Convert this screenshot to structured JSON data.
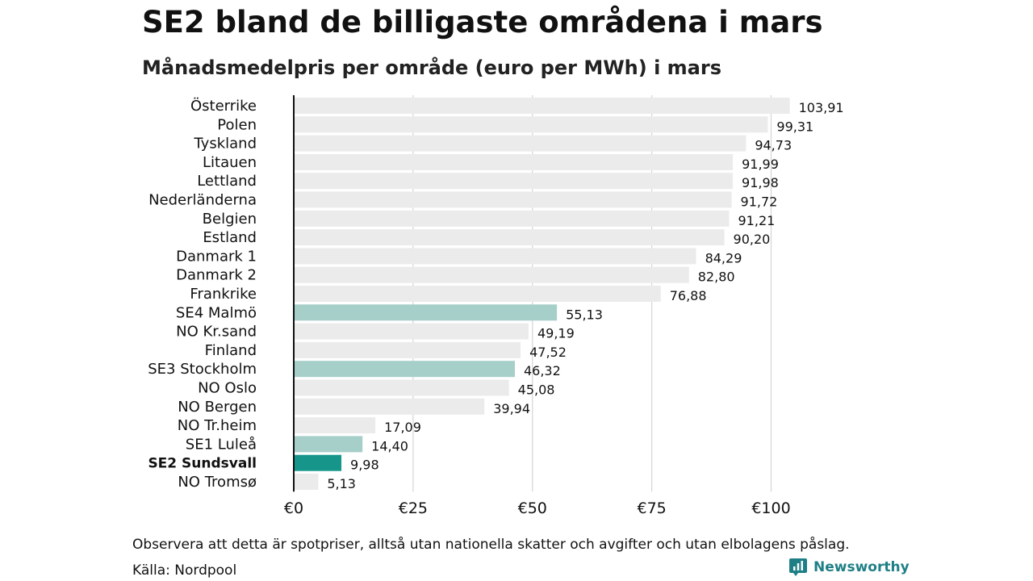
{
  "title": "SE2 bland de billigaste områdena i mars",
  "subtitle": "Månadsmedelpris per område (euro per MWh) i mars",
  "note": "Observera att detta är spotpriser, alltså utan nationella skatter och avgifter och utan elbolagens påslag.",
  "source": "Källa: Nordpool",
  "brand": {
    "name": "Newsworthy",
    "icon": "newsworthy-logo-icon",
    "color": "#1f7f86"
  },
  "colors": {
    "default_bar": "#ebebeb",
    "se_bar": "#a6cfca",
    "highlight_bar": "#16968a",
    "grid": "#d5d5d5",
    "axis": "#111111"
  },
  "chart_data": {
    "type": "bar",
    "orientation": "horizontal",
    "title": "SE2 bland de billigaste områdena i mars",
    "subtitle": "Månadsmedelpris per område (euro per MWh) i mars",
    "xlabel": "",
    "ylabel": "",
    "xlim": [
      0,
      110
    ],
    "ticks": [
      0,
      25,
      50,
      75,
      100
    ],
    "tick_labels": [
      "€0",
      "€25",
      "€50",
      "€75",
      "€100"
    ],
    "grid": true,
    "legend": "none",
    "categories": [
      "Österrike",
      "Polen",
      "Tyskland",
      "Litauen",
      "Lettland",
      "Nederländerna",
      "Belgien",
      "Estland",
      "Danmark 1",
      "Danmark 2",
      "Frankrike",
      "SE4 Malmö",
      "NO Kr.sand",
      "Finland",
      "SE3 Stockholm",
      "NO Oslo",
      "NO Bergen",
      "NO Tr.heim",
      "SE1 Luleå",
      "SE2 Sundsvall",
      "NO Tromsø"
    ],
    "values": [
      103.91,
      99.31,
      94.73,
      91.99,
      91.98,
      91.72,
      91.21,
      90.2,
      84.29,
      82.8,
      76.88,
      55.13,
      49.19,
      47.52,
      46.32,
      45.08,
      39.94,
      17.09,
      14.4,
      9.98,
      5.13
    ],
    "value_labels": [
      "103,91",
      "99,31",
      "94,73",
      "91,99",
      "91,98",
      "91,72",
      "91,21",
      "90,20",
      "84,29",
      "82,80",
      "76,88",
      "55,13",
      "49,19",
      "47,52",
      "46,32",
      "45,08",
      "39,94",
      "17,09",
      "14,40",
      "9,98",
      "5,13"
    ],
    "bar_style": [
      "default",
      "default",
      "default",
      "default",
      "default",
      "default",
      "default",
      "default",
      "default",
      "default",
      "default",
      "se",
      "default",
      "default",
      "se",
      "default",
      "default",
      "default",
      "se",
      "highlight",
      "default"
    ],
    "bold_labels": [
      "SE2 Sundsvall"
    ]
  }
}
